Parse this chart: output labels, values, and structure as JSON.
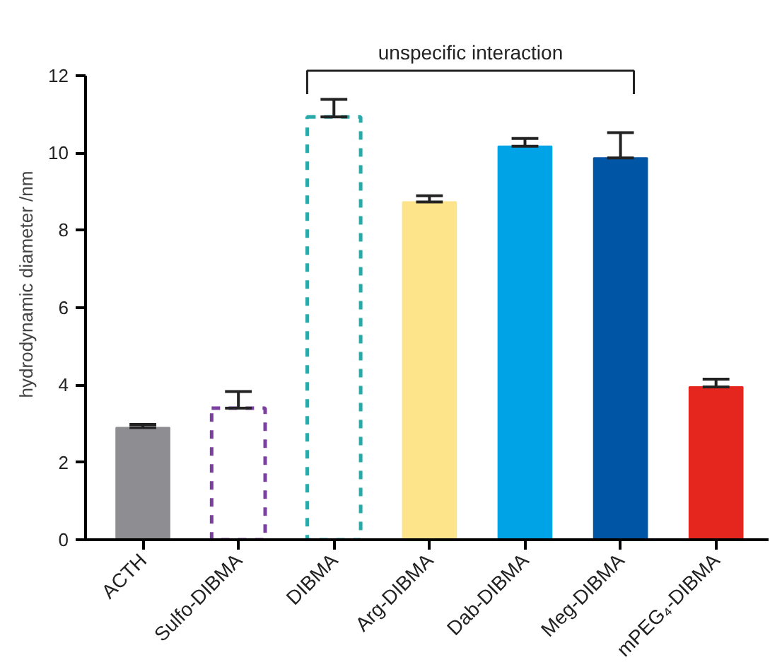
{
  "chart_data": {
    "type": "bar",
    "ylabel": "hydrodynamic diameter /nm",
    "annotations": [
      "unspecific interaction"
    ],
    "categories": [
      "ACTH",
      "Sulfo-DIBMA",
      "DIBMA",
      "Arg-DIBMA",
      "Dab-DIBMA",
      "Meg-DIBMA",
      "mPEG₄-DIBMA"
    ],
    "series": [
      {
        "line_style": "solid",
        "colors": [
          "#8e8e92",
          null,
          null,
          "#fde38a",
          "#00a3e6",
          "#0055a5",
          "#e4261f"
        ],
        "values": [
          2.9,
          null,
          null,
          8.73,
          10.17,
          9.87,
          3.95
        ],
        "errors": [
          [
            2.9,
            2.98
          ],
          null,
          null,
          [
            8.73,
            8.89
          ],
          [
            10.17,
            10.37
          ],
          [
            9.87,
            10.52
          ],
          [
            3.95,
            4.15
          ]
        ]
      },
      {
        "line_style": "dashed",
        "colors": [
          null,
          "#7b3fa0",
          "#2aa9a9",
          null,
          null,
          null,
          null
        ],
        "values": [
          null,
          3.4,
          10.93,
          null,
          null,
          null,
          null
        ],
        "errors": [
          null,
          [
            3.4,
            3.83
          ],
          [
            10.93,
            11.38
          ],
          null,
          null,
          null,
          null
        ]
      }
    ],
    "ylim": [
      0,
      12
    ],
    "yticks": [
      0,
      2,
      4,
      6,
      8,
      10,
      12
    ],
    "grid": false
  }
}
